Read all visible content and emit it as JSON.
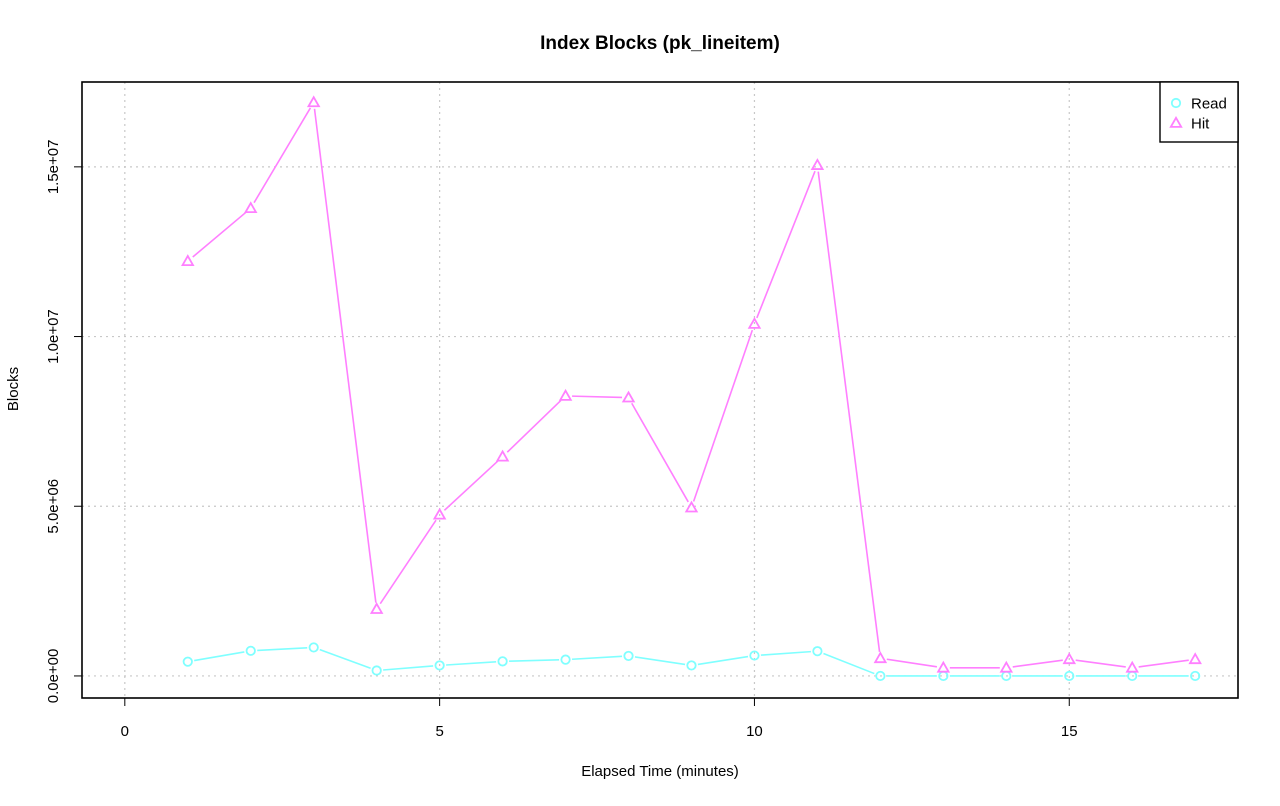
{
  "chart_data": {
    "type": "line",
    "title": "Index Blocks (pk_lineitem)",
    "xlabel": "Elapsed Time (minutes)",
    "ylabel": "Blocks",
    "xlim": [
      -0.68,
      17.68
    ],
    "ylim": [
      -650000,
      17500000
    ],
    "x_ticks": [
      0,
      5,
      10,
      15
    ],
    "x_tick_labels": [
      "0",
      "5",
      "10",
      "15"
    ],
    "y_ticks": [
      0,
      5000000,
      10000000,
      15000000
    ],
    "y_tick_labels": [
      "0.0e+00",
      "5.0e+06",
      "1.0e+07",
      "1.5e+07"
    ],
    "grid": true,
    "legend_position": "top-right",
    "x": [
      1,
      2,
      3,
      4,
      5,
      6,
      7,
      8,
      9,
      10,
      11,
      12,
      13,
      14,
      15,
      16,
      17
    ],
    "series": [
      {
        "name": "Read",
        "color": "#7fffff",
        "marker": "circle",
        "values": [
          420000,
          740000,
          840000,
          160000,
          310000,
          430000,
          480000,
          590000,
          310000,
          600000,
          730000,
          0,
          0,
          0,
          0,
          0,
          0
        ]
      },
      {
        "name": "Hit",
        "color": "#ff7fff",
        "marker": "triangle",
        "values": [
          12220000,
          13780000,
          16900000,
          1970000,
          4750000,
          6460000,
          8250000,
          8200000,
          4960000,
          10370000,
          15050000,
          520000,
          240000,
          240000,
          490000,
          240000,
          490000
        ]
      }
    ]
  }
}
